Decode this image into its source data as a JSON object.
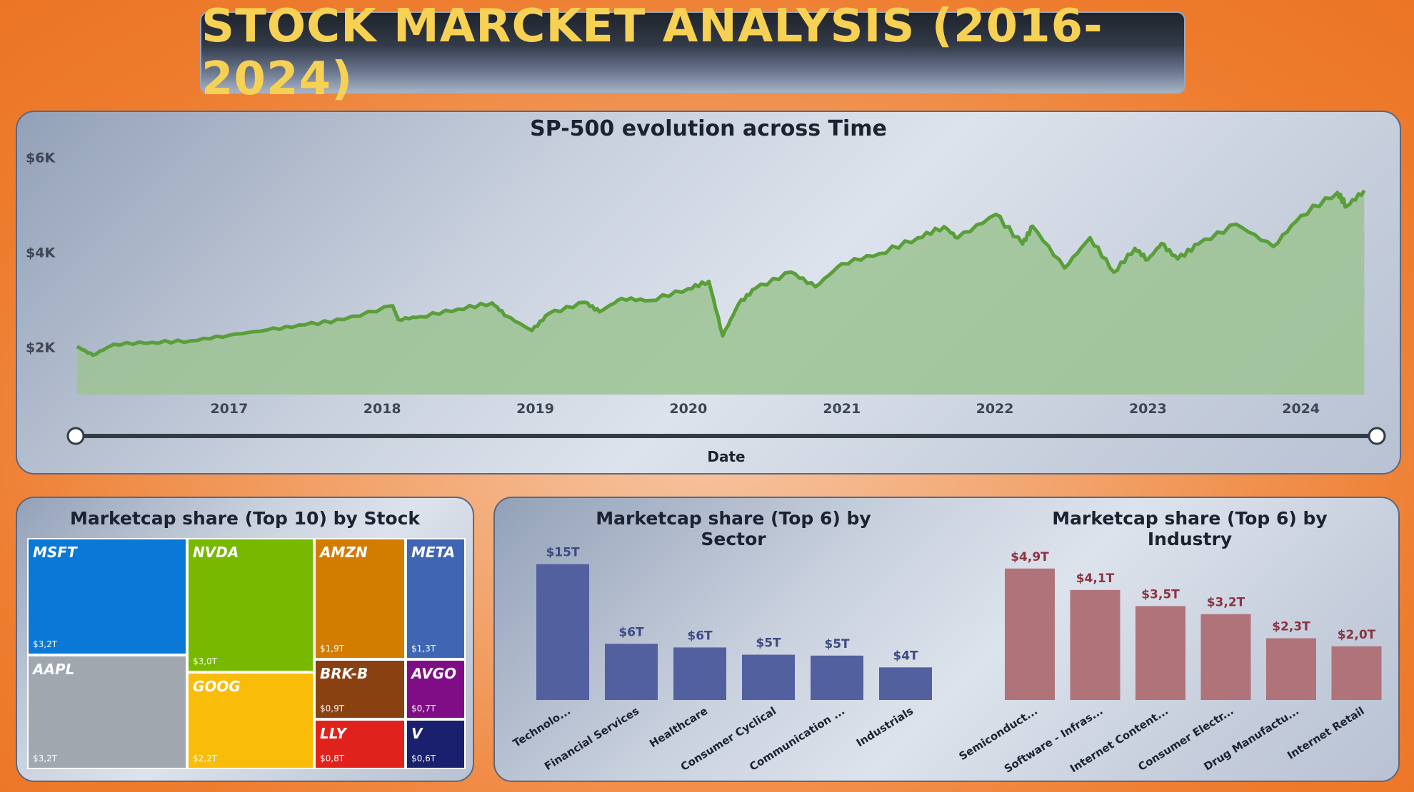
{
  "header": {
    "title": "STOCK MARCKET ANALYSIS (2016-2024)"
  },
  "colors": {
    "line": "#5a9e3a",
    "area": "#9cc393",
    "sector_bar": "#5360a0",
    "industry_bar": "#b0737a",
    "sector_label": "#3f4a84",
    "industry_label": "#8a3440"
  },
  "line_panel": {
    "title": "SP-500 evolution across Time",
    "x_title": "Date",
    "y_ticks": [
      "$6K",
      "$4K",
      "$2K"
    ],
    "x_ticks": [
      "2017",
      "2018",
      "2019",
      "2020",
      "2021",
      "2022",
      "2023",
      "2024"
    ]
  },
  "treemap": {
    "title": "Marketcap share (Top 10) by Stock",
    "tiles": [
      {
        "ticker": "MSFT",
        "value": "$3,2T",
        "color": "#0a78d6"
      },
      {
        "ticker": "AAPL",
        "value": "$3,2T",
        "color": "#a0a7ae"
      },
      {
        "ticker": "NVDA",
        "value": "$3,0T",
        "color": "#76b900"
      },
      {
        "ticker": "GOOG",
        "value": "$2,2T",
        "color": "#f8bc09"
      },
      {
        "ticker": "AMZN",
        "value": "$1,9T",
        "color": "#d27c00"
      },
      {
        "ticker": "META",
        "value": "$1,3T",
        "color": "#4066b3"
      },
      {
        "ticker": "BRK-B",
        "value": "$0,9T",
        "color": "#8a4112"
      },
      {
        "ticker": "AVGO",
        "value": "$0,7T",
        "color": "#7f0d86"
      },
      {
        "ticker": "LLY",
        "value": "$0,8T",
        "color": "#e0221c"
      },
      {
        "ticker": "V",
        "value": "$0,6T",
        "color": "#1a1f6e"
      }
    ]
  },
  "sector_chart": {
    "title": "Marketcap share (Top 6) by Sector"
  },
  "industry_chart": {
    "title": "Marketcap share (Top 6) by Industry"
  },
  "chart_data": [
    {
      "type": "area",
      "title": "SP-500 evolution across Time",
      "xlabel": "Date",
      "ylabel": "",
      "ylim": [
        1000,
        6200
      ],
      "xlim": [
        "2016-01-01",
        "2024-06-30"
      ],
      "x_ticks": [
        "2017",
        "2018",
        "2019",
        "2020",
        "2021",
        "2022",
        "2023",
        "2024"
      ],
      "y_ticks": [
        "$2K",
        "$4K",
        "$6K"
      ],
      "x": [
        "2016-01-04",
        "2016-02-11",
        "2016-04-01",
        "2016-07-01",
        "2016-10-01",
        "2017-01-01",
        "2017-04-01",
        "2017-07-01",
        "2017-10-01",
        "2018-01-26",
        "2018-02-08",
        "2018-04-01",
        "2018-07-01",
        "2018-09-20",
        "2018-10-25",
        "2018-12-24",
        "2019-02-01",
        "2019-04-30",
        "2019-06-03",
        "2019-07-26",
        "2019-10-01",
        "2020-01-01",
        "2020-02-19",
        "2020-03-23",
        "2020-04-30",
        "2020-06-08",
        "2020-09-02",
        "2020-10-30",
        "2021-01-01",
        "2021-04-01",
        "2021-07-01",
        "2021-09-02",
        "2021-10-04",
        "2022-01-03",
        "2022-03-08",
        "2022-04-01",
        "2022-06-16",
        "2022-08-16",
        "2022-10-12",
        "2022-12-01",
        "2023-01-01",
        "2023-02-02",
        "2023-03-13",
        "2023-05-01",
        "2023-07-31",
        "2023-10-27",
        "2024-01-01",
        "2024-03-28",
        "2024-04-19",
        "2024-05-31"
      ],
      "series": [
        {
          "values": [
            2012,
            1830,
            2060,
            2100,
            2130,
            2250,
            2360,
            2470,
            2580,
            2870,
            2580,
            2640,
            2800,
            2930,
            2650,
            2350,
            2700,
            2945,
            2744,
            3025,
            2980,
            3230,
            3386,
            2237,
            2912,
            3232,
            3580,
            3270,
            3756,
            3970,
            4300,
            4536,
            4300,
            4796,
            4170,
            4545,
            3666,
            4305,
            3577,
            4080,
            3840,
            4180,
            3855,
            4170,
            4588,
            4117,
            4770,
            5254,
            4967,
            5300
          ]
        }
      ]
    },
    {
      "type": "treemap",
      "title": "Marketcap share (Top 10) by Stock",
      "categories": [
        "MSFT",
        "AAPL",
        "NVDA",
        "GOOG",
        "AMZN",
        "META",
        "BRK-B",
        "AVGO",
        "LLY",
        "V"
      ],
      "values": [
        3.2,
        3.2,
        3.0,
        2.2,
        1.9,
        1.3,
        0.9,
        0.7,
        0.8,
        0.6
      ],
      "value_labels": [
        "$3,2T",
        "$3,2T",
        "$3,0T",
        "$2,2T",
        "$1,9T",
        "$1,3T",
        "$0,9T",
        "$0,7T",
        "$0,8T",
        "$0,6T"
      ]
    },
    {
      "type": "bar",
      "title": "Marketcap share (Top 6) by Sector",
      "categories": [
        "Technolo...",
        "Financial Services",
        "Healthcare",
        "Consumer Cyclical",
        "Communication ...",
        "Industrials"
      ],
      "values": [
        15,
        6.2,
        5.8,
        5.0,
        4.9,
        3.6
      ],
      "value_labels": [
        "$15T",
        "$6T",
        "$6T",
        "$5T",
        "$5T",
        "$4T"
      ],
      "ylim": [
        0,
        16
      ]
    },
    {
      "type": "bar",
      "title": "Marketcap share (Top 6) by Industry",
      "categories": [
        "Semiconduct...",
        "Software - Infras...",
        "Internet Content...",
        "Consumer Electr...",
        "Drug Manufactu...",
        "Internet Retail"
      ],
      "values": [
        4.9,
        4.1,
        3.5,
        3.2,
        2.3,
        2.0
      ],
      "value_labels": [
        "$4,9T",
        "$4,1T",
        "$3,5T",
        "$3,2T",
        "$2,3T",
        "$2,0T"
      ],
      "ylim": [
        0,
        5.4
      ]
    }
  ]
}
